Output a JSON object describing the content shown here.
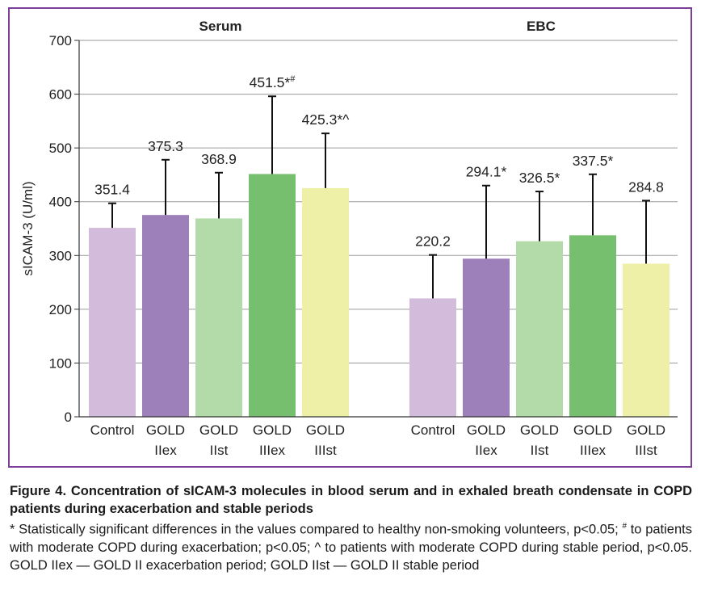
{
  "chart_data": {
    "type": "bar",
    "ylabel": "sICAM-3 (U/ml)",
    "ylim": [
      0,
      700
    ],
    "yticks": [
      0,
      100,
      200,
      300,
      400,
      500,
      600,
      700
    ],
    "grid": true,
    "categories": [
      {
        "line1": "Control",
        "line2": ""
      },
      {
        "line1": "GOLD",
        "line2": "IIex"
      },
      {
        "line1": "GOLD",
        "line2": "IIst"
      },
      {
        "line1": "GOLD",
        "line2": "IIIex"
      },
      {
        "line1": "GOLD",
        "line2": "IIIst"
      }
    ],
    "colors": [
      "#d3bcdb",
      "#9d7fb9",
      "#b2dba9",
      "#76bf6e",
      "#eef0a8"
    ],
    "groups": [
      {
        "title": "Serum",
        "values": [
          351.4,
          375.3,
          368.9,
          451.5,
          425.3
        ],
        "errors": [
          397,
          478,
          454,
          596,
          527
        ],
        "labels": [
          {
            "text": "351.4",
            "sup": ""
          },
          {
            "text": "375.3",
            "sup": ""
          },
          {
            "text": "368.9",
            "sup": ""
          },
          {
            "text": "451.5*",
            "sup": "#"
          },
          {
            "text": "425.3*^",
            "sup": ""
          }
        ]
      },
      {
        "title": "EBC",
        "values": [
          220.2,
          294.1,
          326.5,
          337.5,
          284.8
        ],
        "errors": [
          301,
          430,
          419,
          451,
          402
        ],
        "labels": [
          {
            "text": "220.2",
            "sup": ""
          },
          {
            "text": "294.1*",
            "sup": ""
          },
          {
            "text": "326.5*",
            "sup": ""
          },
          {
            "text": "337.5*",
            "sup": ""
          },
          {
            "text": "284.8",
            "sup": ""
          }
        ]
      }
    ]
  },
  "caption": {
    "title": "Figure 4. Concentration of sICAM-3 molecules in blood serum and in exhaled breath condensate in COPD patients during exacerbation and stable periods",
    "note_part1": "* Statistically significant differences in the values compared to healthy non-smoking volunteers, p<0.05; ",
    "note_sup": "#",
    "note_part2": " to patients with moderate COPD during exacerbation; p<0.05; ^ to patients with moderate COPD during stable period, p<0.05. GOLD IIex — GOLD II exacerbation period; GOLD IIst — GOLD II stable period"
  }
}
